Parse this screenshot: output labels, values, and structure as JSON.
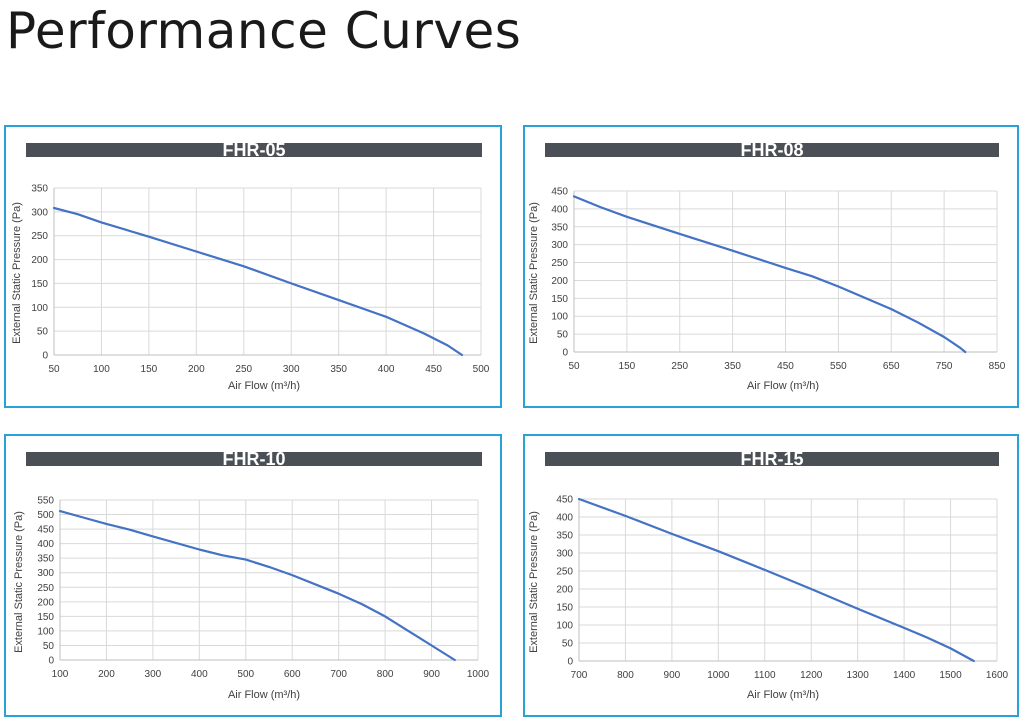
{
  "page": {
    "title": "Performance Curves"
  },
  "chart_data": [
    {
      "type": "line",
      "title": "FHR-05",
      "xlabel": "Air Flow  (m³/h)",
      "ylabel": "External Static Pressure  (Pa)",
      "xlim": [
        50,
        500
      ],
      "ylim": [
        0,
        350
      ],
      "xticks": [
        50,
        100,
        150,
        200,
        250,
        300,
        350,
        400,
        450,
        500
      ],
      "yticks": [
        0,
        50,
        100,
        150,
        200,
        250,
        300,
        350
      ],
      "grid": true,
      "color": "#4472c4",
      "series": [
        {
          "x": [
            50,
            75,
            100,
            150,
            200,
            250,
            300,
            350,
            400,
            440,
            465,
            480
          ],
          "y": [
            308,
            295,
            278,
            248,
            217,
            186,
            150,
            115,
            80,
            45,
            20,
            0
          ]
        }
      ]
    },
    {
      "type": "line",
      "title": "FHR-08",
      "xlabel": "Air Flow  (m³/h)",
      "ylabel": "External Static Pressure  (Pa)",
      "xlim": [
        50,
        850
      ],
      "ylim": [
        0,
        450
      ],
      "xticks": [
        50,
        150,
        250,
        350,
        450,
        550,
        650,
        750,
        850
      ],
      "yticks": [
        0,
        50,
        100,
        150,
        200,
        250,
        300,
        350,
        400,
        450
      ],
      "grid": true,
      "color": "#4472c4",
      "series": [
        {
          "x": [
            50,
            100,
            150,
            250,
            350,
            450,
            500,
            550,
            650,
            700,
            750,
            780,
            790
          ],
          "y": [
            435,
            405,
            378,
            330,
            283,
            235,
            212,
            183,
            120,
            83,
            42,
            12,
            0
          ]
        }
      ]
    },
    {
      "type": "line",
      "title": "FHR-10",
      "xlabel": "Air Flow  (m³/h)",
      "ylabel": "External Static Pressure  (Pa)",
      "xlim": [
        100,
        1000
      ],
      "ylim": [
        0,
        550
      ],
      "xticks": [
        100,
        200,
        300,
        400,
        500,
        600,
        700,
        800,
        900,
        1000
      ],
      "yticks": [
        0,
        50,
        100,
        150,
        200,
        250,
        300,
        350,
        400,
        450,
        500,
        550
      ],
      "grid": true,
      "color": "#4472c4",
      "series": [
        {
          "x": [
            100,
            150,
            200,
            250,
            300,
            400,
            450,
            500,
            550,
            600,
            700,
            750,
            800,
            850,
            900,
            950
          ],
          "y": [
            512,
            490,
            468,
            448,
            425,
            380,
            360,
            345,
            320,
            292,
            228,
            192,
            150,
            100,
            50,
            0
          ]
        }
      ]
    },
    {
      "type": "line",
      "title": "FHR-15",
      "xlabel": "Air Flow  (m³/h)",
      "ylabel": "External Static Pressure  (Pa)",
      "xlim": [
        700,
        1600
      ],
      "ylim": [
        0,
        450
      ],
      "xticks": [
        700,
        800,
        900,
        1000,
        1100,
        1200,
        1300,
        1400,
        1500,
        1600
      ],
      "yticks": [
        0,
        50,
        100,
        150,
        200,
        250,
        300,
        350,
        400,
        450
      ],
      "grid": true,
      "color": "#4472c4",
      "series": [
        {
          "x": [
            700,
            800,
            900,
            1000,
            1100,
            1200,
            1300,
            1400,
            1450,
            1500,
            1550
          ],
          "y": [
            450,
            403,
            353,
            305,
            253,
            200,
            145,
            92,
            65,
            35,
            0
          ]
        }
      ]
    }
  ]
}
